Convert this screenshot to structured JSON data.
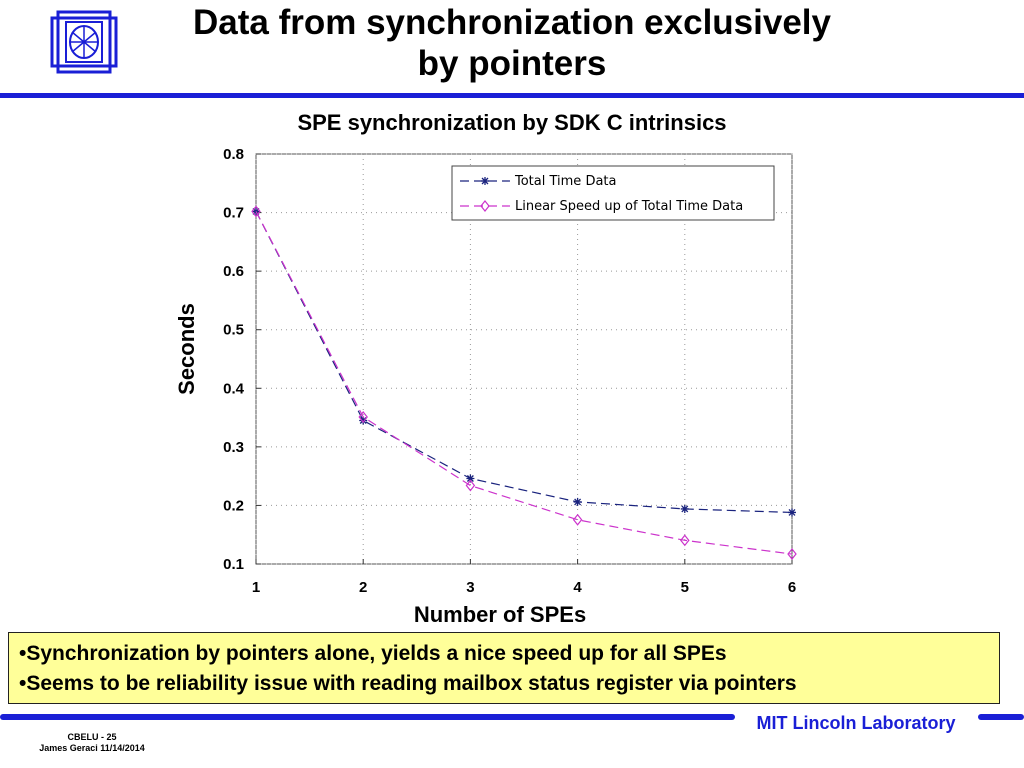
{
  "slide": {
    "title_line1": "Data from synchronization exclusively",
    "title_line2": "by pointers",
    "bullets": [
      "Synchronization by pointers alone, yields a nice speed up for all SPEs",
      "Seems to be reliability issue with reading mailbox status register via pointers"
    ],
    "lab_name": "MIT Lincoln Laboratory",
    "footer_line1": "CBELU - 25",
    "footer_line2": "James Geraci 11/14/2014",
    "accent_color": "#1a1fd6",
    "note_background": "#ffff99",
    "logo_icon": "lincoln-lab-logo-icon"
  },
  "chart_data": {
    "type": "line",
    "title": "SPE synchronization by SDK C intrinsics",
    "xlabel": "Number of SPEs",
    "ylabel": "Seconds",
    "x": [
      1,
      2,
      3,
      4,
      5,
      6
    ],
    "xticks": [
      "1",
      "2",
      "3",
      "4",
      "5",
      "6"
    ],
    "xlim": [
      1,
      6
    ],
    "ylim": [
      0.1,
      0.8
    ],
    "yticks": [
      "0.8",
      "0.7",
      "0.6",
      "0.5",
      "0.4",
      "0.3",
      "0.2",
      "0.1"
    ],
    "grid": true,
    "legend_position": "top-right",
    "series": [
      {
        "name": "Total Time Data",
        "values": [
          0.702,
          0.345,
          0.246,
          0.206,
          0.194,
          0.188
        ],
        "color": "#1a237e",
        "marker": "asterisk"
      },
      {
        "name": "Linear Speed up of Total Time Data",
        "values": [
          0.702,
          0.351,
          0.234,
          0.1755,
          0.1404,
          0.117
        ],
        "color": "#cc33cc",
        "marker": "diamond"
      }
    ]
  }
}
